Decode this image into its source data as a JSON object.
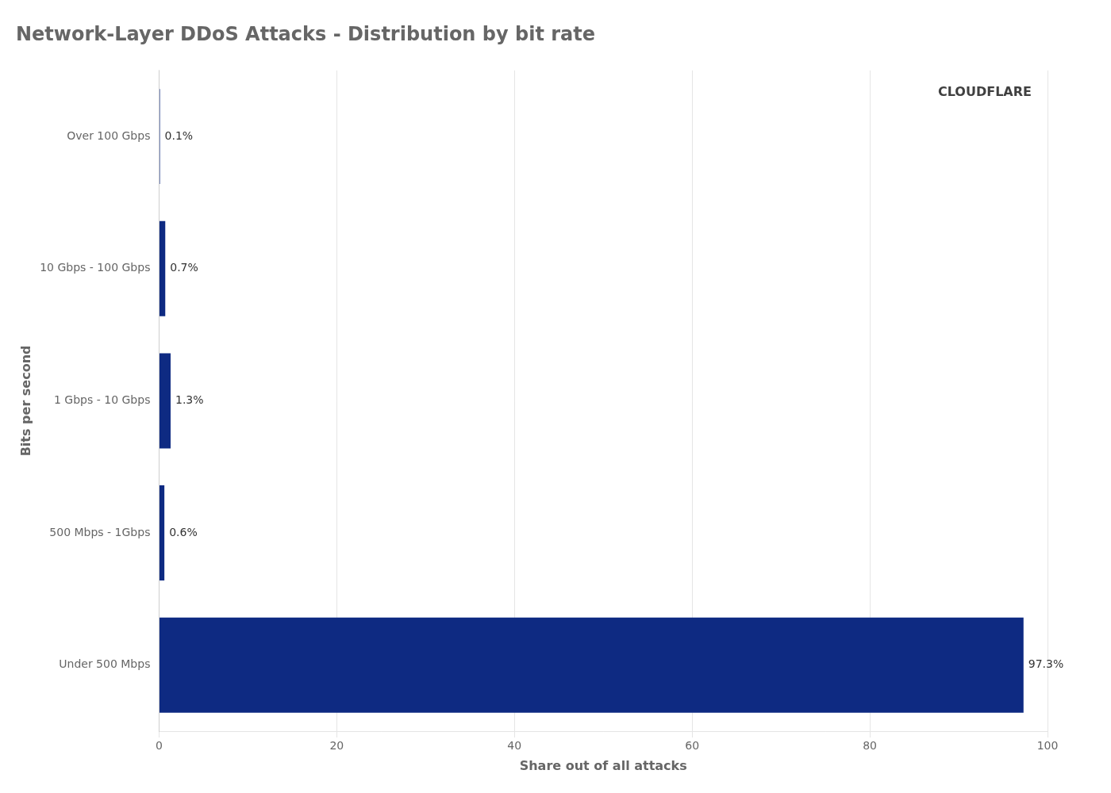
{
  "chart_data": {
    "type": "bar",
    "orientation": "horizontal",
    "title": "Network-Layer DDoS Attacks - Distribution by bit rate",
    "x_label": "Share out of all attacks",
    "y_label": "Bits per second",
    "categories": [
      "Under 500 Mbps",
      "500 Mbps - 1Gbps",
      "1 Gbps - 10 Gbps",
      "10 Gbps - 100 Gbps",
      "Over 100 Gbps"
    ],
    "values": [
      97.3,
      0.6,
      1.3,
      0.7,
      0.1
    ],
    "value_labels": [
      "97.3%",
      "0.6%",
      "1.3%",
      "0.7%",
      "0.1%"
    ],
    "data_labels": true,
    "color": "#0E2A82",
    "xlim": [
      0,
      100
    ],
    "xticks": [
      0,
      20,
      40,
      60,
      80,
      100
    ],
    "grid": "x",
    "annotations": [
      "CLOUDFLARE"
    ]
  }
}
